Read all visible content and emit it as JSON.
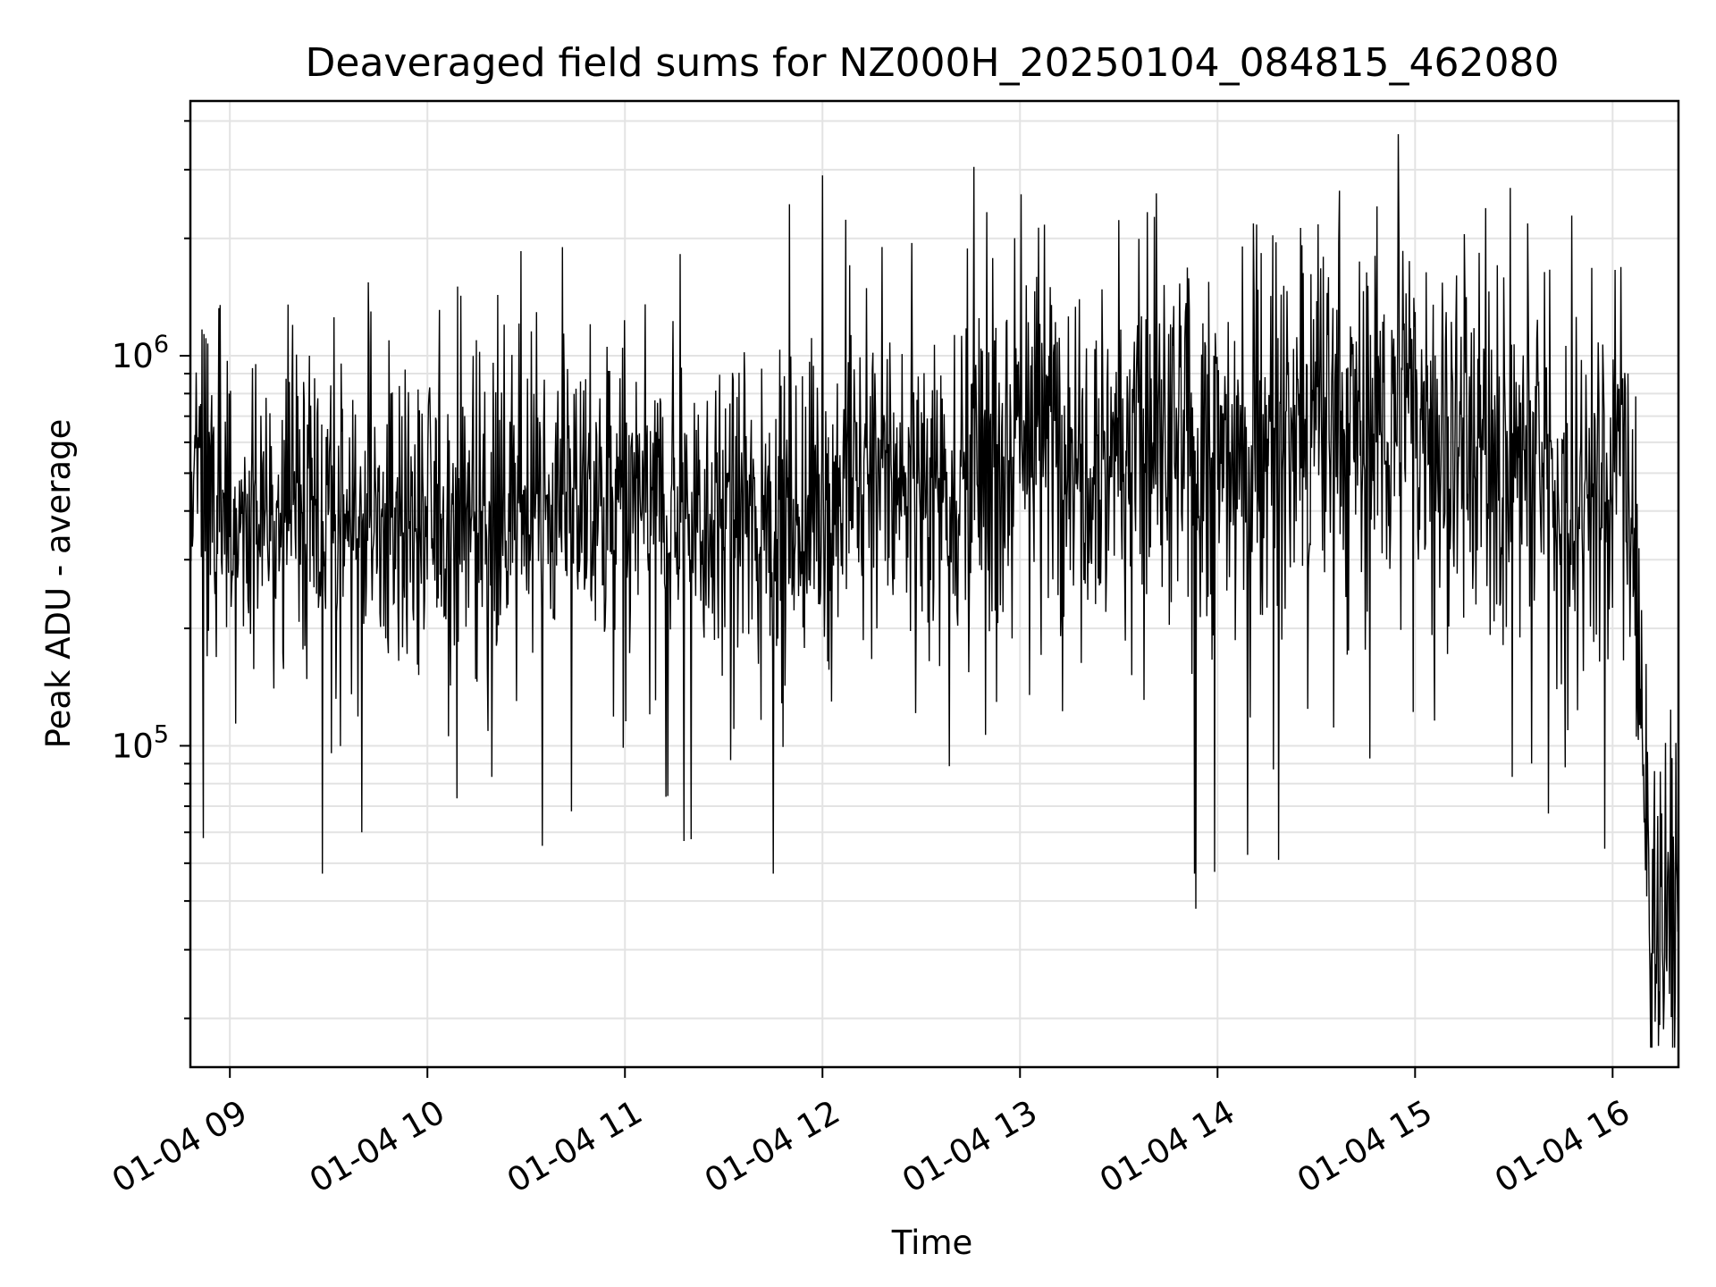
{
  "chart_data": {
    "type": "line",
    "title": "Deaveraged field sums for NZ000H_20250104_084815_462080",
    "xlabel": "Time",
    "ylabel": "Peak ADU - average",
    "x_tick_labels": [
      "01-04 09",
      "01-04 10",
      "01-04 11",
      "01-04 12",
      "01-04 13",
      "01-04 14",
      "01-04 15",
      "01-04 16"
    ],
    "y_tick_labels": [
      {
        "value": 100000,
        "base": "10",
        "exp": "5"
      },
      {
        "value": 1000000,
        "base": "10",
        "exp": "6"
      }
    ],
    "xlim": [
      "2025-01-04 08:48",
      "2025-01-04 16:20"
    ],
    "ylim": [
      15000,
      4500000
    ],
    "y_scale": "log",
    "grid": true,
    "line_color": "#000000",
    "series": [
      {
        "x_start": "2025-01-04 08:48",
        "x_end": "2025-01-04 16:20",
        "anchors": [
          {
            "t": "2025-01-04 08:48",
            "y": 450000
          },
          {
            "t": "2025-01-04 09:00",
            "y": 400000
          },
          {
            "t": "2025-01-04 09:30",
            "y": 350000
          },
          {
            "t": "2025-01-04 10:00",
            "y": 380000
          },
          {
            "t": "2025-01-04 10:30",
            "y": 420000
          },
          {
            "t": "2025-01-04 11:00",
            "y": 420000
          },
          {
            "t": "2025-01-04 11:30",
            "y": 400000
          },
          {
            "t": "2025-01-04 11:50",
            "y": 380000
          },
          {
            "t": "2025-01-04 12:00",
            "y": 430000
          },
          {
            "t": "2025-01-04 12:30",
            "y": 500000
          },
          {
            "t": "2025-01-04 12:45",
            "y": 480000
          },
          {
            "t": "2025-01-04 13:00",
            "y": 700000
          },
          {
            "t": "2025-01-04 13:30",
            "y": 600000
          },
          {
            "t": "2025-01-04 14:00",
            "y": 550000
          },
          {
            "t": "2025-01-04 14:30",
            "y": 650000
          },
          {
            "t": "2025-01-04 15:00",
            "y": 700000
          },
          {
            "t": "2025-01-04 15:30",
            "y": 550000
          },
          {
            "t": "2025-01-04 15:55",
            "y": 450000
          },
          {
            "t": "2025-01-04 16:05",
            "y": 600000
          },
          {
            "t": "2025-01-04 16:10",
            "y": 60000
          },
          {
            "t": "2025-01-04 16:15",
            "y": 40000
          },
          {
            "t": "2025-01-04 16:20",
            "y": 40000
          }
        ],
        "peaks": [
          {
            "t": "2025-01-04 08:57",
            "y": 1350000
          },
          {
            "t": "2025-01-04 09:19",
            "y": 1200000
          },
          {
            "t": "2025-01-04 12:00",
            "y": 2900000
          },
          {
            "t": "2025-01-04 12:18",
            "y": 1900000
          },
          {
            "t": "2025-01-04 12:46",
            "y": 3050000
          },
          {
            "t": "2025-01-04 14:37",
            "y": 2650000
          },
          {
            "t": "2025-01-04 14:55",
            "y": 3700000
          },
          {
            "t": "2025-01-04 15:15",
            "y": 2050000
          }
        ],
        "troughs": [
          {
            "t": "2025-01-04 08:52",
            "y": 58000
          },
          {
            "t": "2025-01-04 09:28",
            "y": 47000
          },
          {
            "t": "2025-01-04 09:40",
            "y": 60000
          },
          {
            "t": "2025-01-04 11:18",
            "y": 57000
          },
          {
            "t": "2025-01-04 11:45",
            "y": 47000
          },
          {
            "t": "2025-01-04 13:53",
            "y": 47000
          },
          {
            "t": "2025-01-04 13:59",
            "y": 47500
          },
          {
            "t": "2025-01-04 16:14",
            "y": 17000
          }
        ]
      }
    ]
  }
}
